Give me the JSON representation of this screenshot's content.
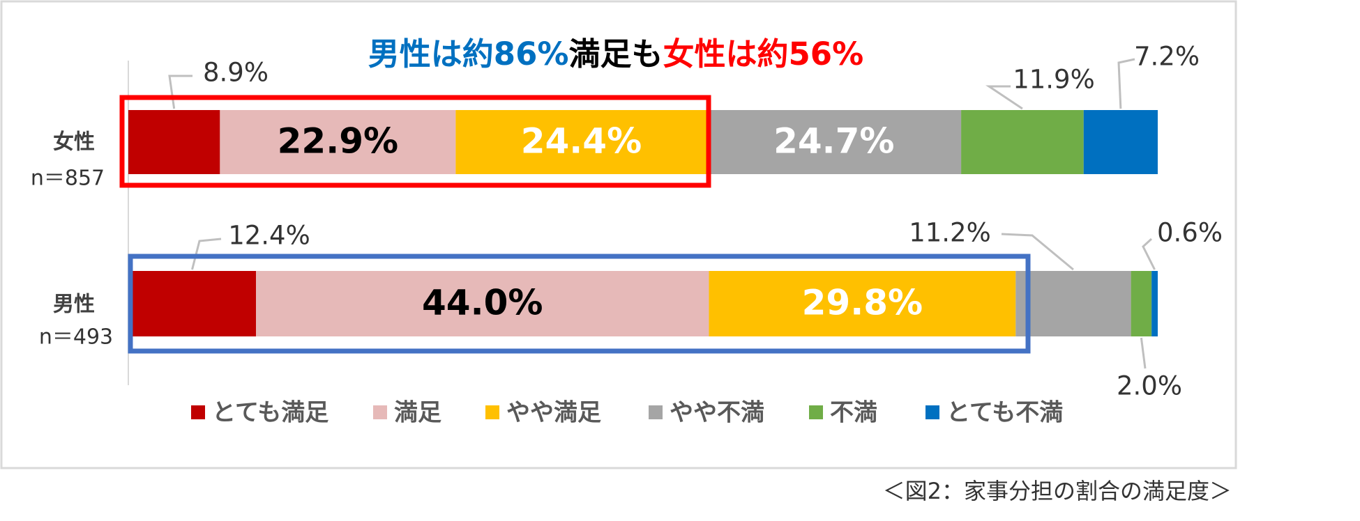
{
  "chart_data": {
    "type": "stacked-bar-horizontal",
    "title": [
      {
        "text": "男性は約86%",
        "color": "#0070c0"
      },
      {
        "text": "満足も",
        "color": "#000000"
      },
      {
        "text": "女性は約56%",
        "color": "#ff0000"
      }
    ],
    "categories": [
      "女性",
      "男性"
    ],
    "sample_sizes": [
      "n＝857",
      "n＝493"
    ],
    "xlim": [
      0,
      100
    ],
    "series": [
      {
        "name": "とても満足",
        "color": "#c00000",
        "values": [
          8.9,
          12.4
        ],
        "value_labels": [
          "8.9%",
          "12.4%"
        ]
      },
      {
        "name": "満足",
        "color": "#e6b9b8",
        "values": [
          22.9,
          44.0
        ],
        "value_labels": [
          "22.9%",
          "44.0%"
        ]
      },
      {
        "name": "やや満足",
        "color": "#ffc000",
        "values": [
          24.4,
          29.8
        ],
        "value_labels": [
          "24.4%",
          "29.8%"
        ]
      },
      {
        "name": "やや不満",
        "color": "#a5a5a5",
        "values": [
          24.7,
          11.2
        ],
        "value_labels": [
          "24.7%",
          "11.2%"
        ]
      },
      {
        "name": "不満",
        "color": "#70ad47",
        "values": [
          11.9,
          2.0
        ],
        "value_labels": [
          "11.9%",
          "2.0%"
        ]
      },
      {
        "name": "とても不満",
        "color": "#0070c0",
        "values": [
          7.2,
          0.6
        ],
        "value_labels": [
          "7.2%",
          "0.6%"
        ]
      }
    ],
    "highlight_boxes": [
      {
        "category": 0,
        "color": "#ff0000"
      },
      {
        "category": 1,
        "color": "#4472c4"
      }
    ]
  },
  "caption": "＜図2：家事分担の割合の満足度＞"
}
